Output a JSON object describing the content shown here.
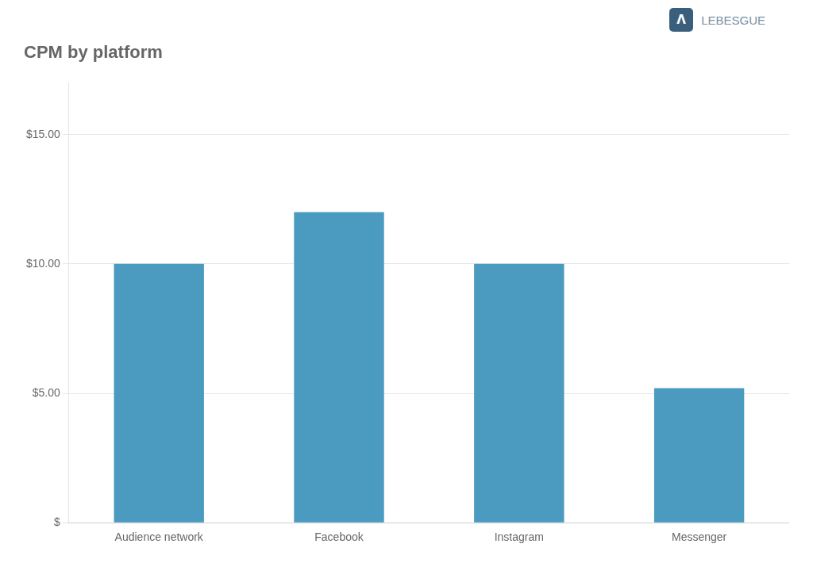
{
  "chart_data": {
    "type": "bar",
    "title": "CPM by platform",
    "categories": [
      "Audience network",
      "Facebook",
      "Instagram",
      "Messenger"
    ],
    "values": [
      10.0,
      12.0,
      10.0,
      5.2
    ],
    "color": "#4a9bbf",
    "ylim": [
      0,
      17
    ],
    "yticks": [
      {
        "value": 0,
        "label": "$"
      },
      {
        "value": 5.0,
        "label": "$5.00"
      },
      {
        "value": 10.0,
        "label": "$10.00"
      },
      {
        "value": 15.0,
        "label": "$15.00"
      }
    ],
    "grid": true,
    "annotations": [
      {
        "text": "Λ",
        "color": "#3a5f7d"
      },
      {
        "text": "LEBESGUE",
        "color": "#7a8fa6"
      }
    ]
  }
}
